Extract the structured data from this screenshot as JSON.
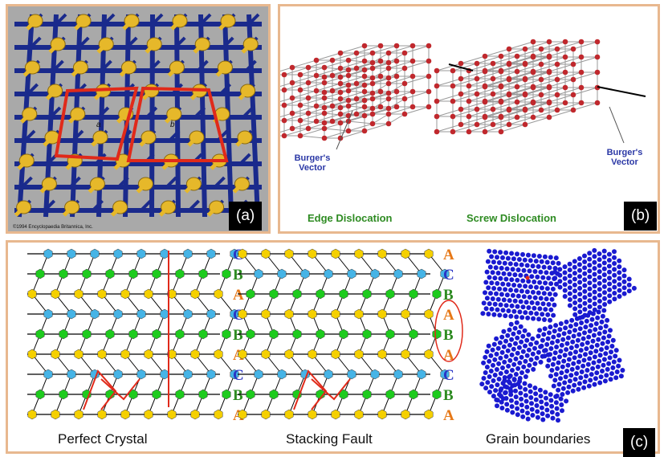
{
  "panel_a": {
    "tag": "(a)",
    "copyright": "©1994 Encyclopaedia Britannica, Inc.",
    "label_a": "a",
    "label_b": "b",
    "colors": {
      "bg": "#a9a9a9",
      "rod": "#1a2a8c",
      "atom": "#e6b82a",
      "outline": "#e02a1a"
    }
  },
  "panel_b": {
    "tag": "(b)",
    "left_vector_label": [
      "Burger's",
      "Vector"
    ],
    "right_vector_label": [
      "Burger's",
      "Vector"
    ],
    "edge_label": "Edge Dislocation",
    "screw_label": "Screw Dislocation",
    "colors": {
      "atom": "#c0282d",
      "bond": "#9a9a9a",
      "label": "#2e8b22",
      "vector_text": "#2b38a6"
    }
  },
  "panel_c": {
    "tag": "(c)",
    "perfect_caption": "Perfect Crystal",
    "fault_caption": "Stacking Fault",
    "grain_caption": "Grain boundaries",
    "perfect_letters": [
      "C",
      "B",
      "A",
      "C",
      "B",
      "A",
      "C",
      "B",
      "A"
    ],
    "fault_letters": [
      "A",
      "C",
      "B",
      "A",
      "B",
      "A",
      "C",
      "B",
      "A"
    ],
    "colors": {
      "A": "#f5d000",
      "B": "#1ecb1e",
      "C": "#46b4e6",
      "letterA": "#e67817",
      "letterB": "#2e8b22",
      "letterC": "#2a35c4",
      "grain": "#1a1ad0"
    }
  }
}
